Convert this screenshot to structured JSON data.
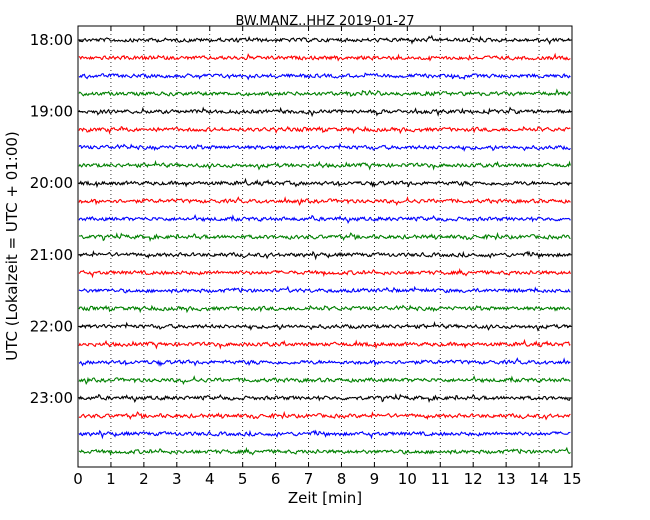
{
  "chart_data": {
    "type": "line",
    "title": "BW.MANZ..HHZ 2019-01-27",
    "xlabel": "Zeit  [min]",
    "ylabel": "UTC (Lokalzeit = UTC + 01:00)",
    "xlim": [
      0,
      15
    ],
    "x_ticks": [
      "0",
      "1",
      "2",
      "3",
      "4",
      "5",
      "6",
      "7",
      "8",
      "9",
      "10",
      "11",
      "12",
      "13",
      "14",
      "15"
    ],
    "y_ticks": [
      "18:00",
      "19:00",
      "20:00",
      "21:00",
      "22:00",
      "23:00"
    ],
    "grid": "vertical-dotted",
    "trace_interval_min": 15,
    "trace_count": 24,
    "trace_colors": [
      "#000000",
      "#ff0000",
      "#0000ff",
      "#008000"
    ]
  }
}
